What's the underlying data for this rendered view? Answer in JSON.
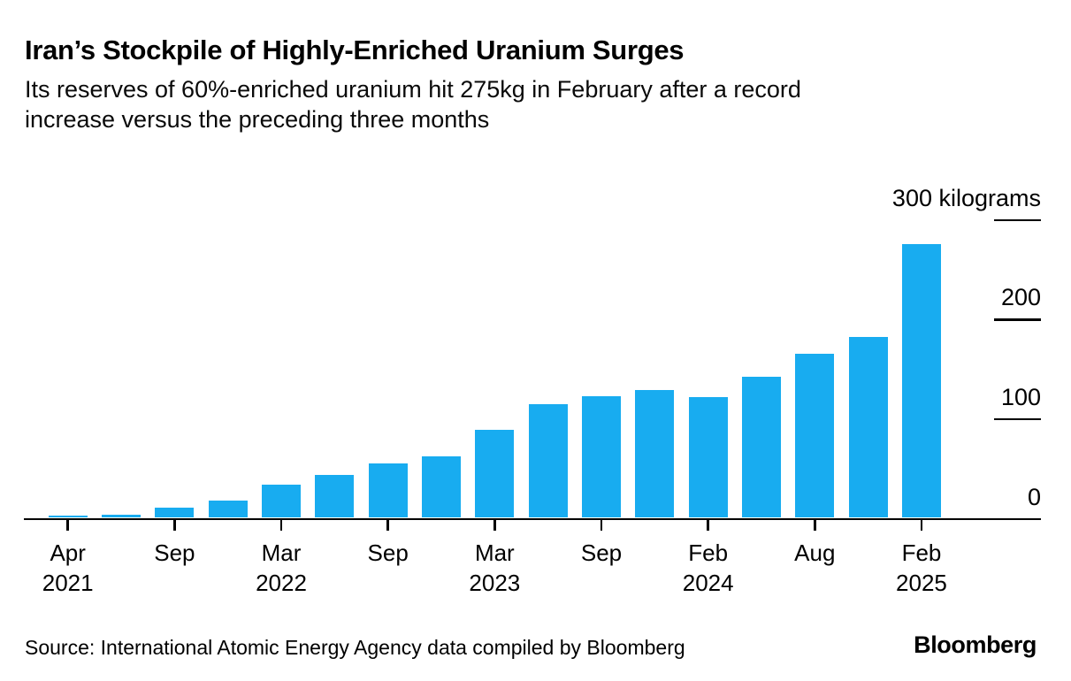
{
  "header": {
    "title": "Iran’s Stockpile of Highly-Enriched Uranium Surges",
    "subtitle_lines": [
      "Its reserves of 60%-enriched uranium hit 275kg in February after a record",
      "increase versus the preceding three months"
    ]
  },
  "chart_data": {
    "type": "bar",
    "title": "Iran’s Stockpile of Highly-Enriched Uranium Surges",
    "unit": "kilograms",
    "bar_color": "#18acf0",
    "axis_color": "#000000",
    "values": [
      2,
      3,
      10,
      17,
      33,
      43,
      55,
      62,
      88,
      114,
      122,
      128,
      121,
      142,
      165,
      182,
      275
    ],
    "x_tick_bar_indices": [
      0,
      2,
      4,
      6,
      8,
      10,
      12,
      14,
      16
    ],
    "x_tick_labels": [
      [
        "Apr",
        "2021"
      ],
      [
        "Sep"
      ],
      [
        "Mar",
        "2022"
      ],
      [
        "Sep"
      ],
      [
        "Mar",
        "2023"
      ],
      [
        "Sep"
      ],
      [
        "Feb",
        "2024"
      ],
      [
        "Aug"
      ],
      [
        "Feb",
        "2025"
      ]
    ],
    "y_ticks": [
      {
        "value": 300,
        "label": "300 kilograms"
      },
      {
        "value": 200,
        "label": "200"
      },
      {
        "value": 100,
        "label": "100"
      },
      {
        "value": 0,
        "label": "0"
      }
    ],
    "ylim": [
      0,
      300
    ],
    "grid": "none",
    "legend": "none",
    "axis_label_side": "right"
  },
  "footer": {
    "source": "Source: International Atomic Energy Agency data compiled by Bloomberg",
    "brand": "Bloomberg"
  }
}
